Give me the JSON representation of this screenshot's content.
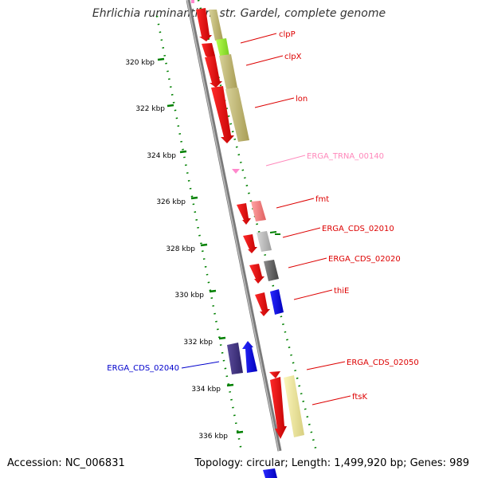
{
  "title": "Ehrlichia ruminantium str. Gardel, complete genome",
  "footer": {
    "accession": "Accession: NC_006831",
    "topology": "Topology: circular; Length: 1,499,920 bp; Genes: 989"
  },
  "colors": {
    "cds": "#ff0000",
    "trna": "#ff88cc",
    "backbone": "#808080",
    "ticks": "#008000",
    "minus_label": "#0000cc"
  },
  "ruler": [
    {
      "label": "320 kbp"
    },
    {
      "label": "322 kbp"
    },
    {
      "label": "324 kbp"
    },
    {
      "label": "326 kbp"
    },
    {
      "label": "328 kbp"
    },
    {
      "label": "330 kbp"
    },
    {
      "label": "332 kbp"
    },
    {
      "label": "334 kbp"
    },
    {
      "label": "336 kbp"
    }
  ],
  "genes": [
    {
      "label": "clpP",
      "color": "#ee0000"
    },
    {
      "label": "clpX",
      "color": "#ee0000"
    },
    {
      "label": "lon",
      "color": "#ee0000"
    },
    {
      "label": "ERGA_TRNA_00140",
      "color": "#ff88bb"
    },
    {
      "label": "fmt",
      "color": "#ee0000"
    },
    {
      "label": "ERGA_CDS_02010",
      "color": "#ee0000"
    },
    {
      "label": "ERGA_CDS_02020",
      "color": "#ee0000"
    },
    {
      "label": "thiE",
      "color": "#ee0000"
    },
    {
      "label": "ERGA_CDS_02040",
      "color": "#0000cc"
    },
    {
      "label": "ERGA_CDS_02050",
      "color": "#ee0000"
    },
    {
      "label": "ftsK",
      "color": "#ee0000"
    }
  ]
}
